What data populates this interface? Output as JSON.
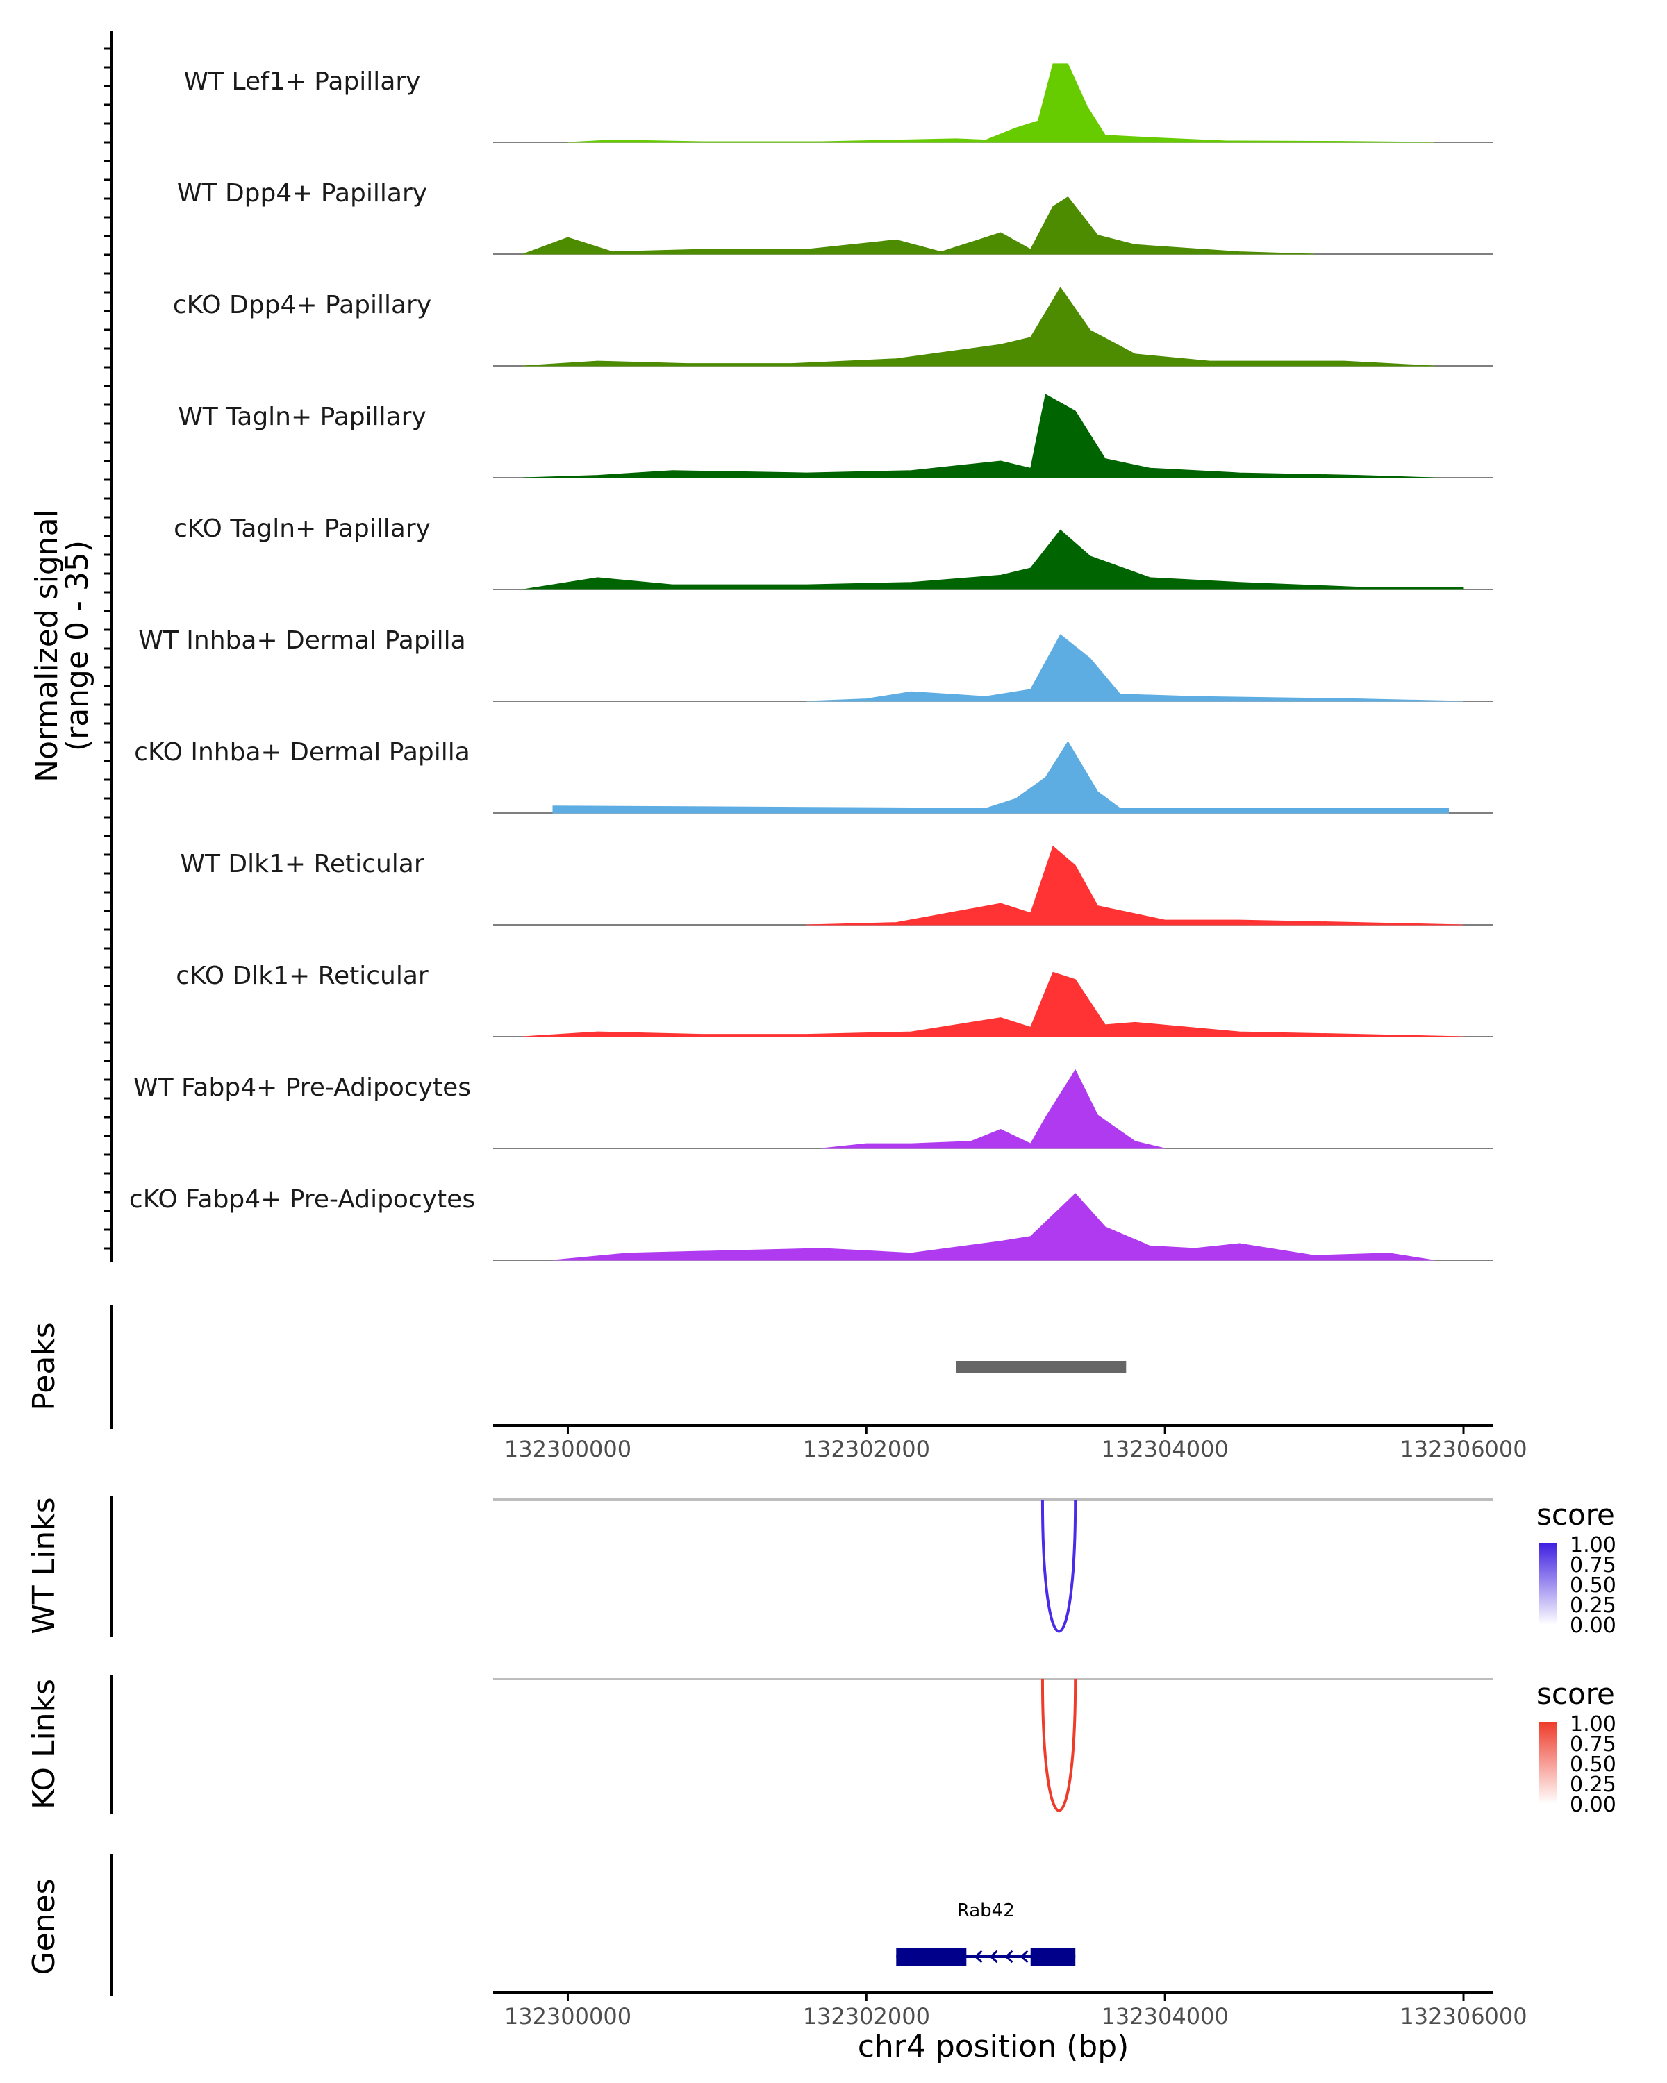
{
  "chart_data": {
    "type": "area",
    "title": "",
    "xlabel": "chr4 position (bp)",
    "ylabel": "Normalized signal",
    "ylabel_sub": "(range 0 - 35)",
    "xlim": [
      132299500,
      132306200
    ],
    "ylim": [
      0,
      35
    ],
    "x_ticks": [
      132300000,
      132302000,
      132304000,
      132306000
    ],
    "x_tick_labels": [
      "132300000",
      "132302000",
      "132304000",
      "132306000"
    ],
    "series": [
      {
        "name": "WT Lef1+ Papillary",
        "color": "#66CC00",
        "values": [
          [
            132300000,
            0
          ],
          [
            132300300,
            1
          ],
          [
            132300900,
            0.3
          ],
          [
            132301700,
            0.3
          ],
          [
            132302600,
            1.5
          ],
          [
            132302800,
            1
          ],
          [
            132303000,
            6
          ],
          [
            132303150,
            9
          ],
          [
            132303250,
            33
          ],
          [
            132303350,
            33
          ],
          [
            132303480,
            15
          ],
          [
            132303600,
            3
          ],
          [
            132303900,
            2
          ],
          [
            132304400,
            0.6
          ],
          [
            132305200,
            0.4
          ],
          [
            132305800,
            0
          ]
        ]
      },
      {
        "name": "WT Dpp4+ Papillary",
        "color": "#4D8C00",
        "values": [
          [
            132299700,
            0
          ],
          [
            132300000,
            7
          ],
          [
            132300300,
            1
          ],
          [
            132300900,
            2
          ],
          [
            132301600,
            2
          ],
          [
            132302200,
            6
          ],
          [
            132302500,
            1
          ],
          [
            132302900,
            9
          ],
          [
            132303100,
            2
          ],
          [
            132303250,
            20
          ],
          [
            132303350,
            24
          ],
          [
            132303550,
            8
          ],
          [
            132303800,
            4
          ],
          [
            132304500,
            1
          ],
          [
            132305000,
            0
          ]
        ]
      },
      {
        "name": "cKO Dpp4+ Papillary",
        "color": "#4D8C00",
        "values": [
          [
            132299700,
            0
          ],
          [
            132300200,
            2
          ],
          [
            132300800,
            1
          ],
          [
            132301500,
            1
          ],
          [
            132302200,
            3
          ],
          [
            132302900,
            9
          ],
          [
            132303100,
            12
          ],
          [
            132303300,
            33
          ],
          [
            132303500,
            15
          ],
          [
            132303800,
            5
          ],
          [
            132304300,
            2
          ],
          [
            132305200,
            2
          ],
          [
            132305800,
            0
          ]
        ]
      },
      {
        "name": "WT Tagln+ Papillary",
        "color": "#006400",
        "values": [
          [
            132299700,
            0
          ],
          [
            132300200,
            1
          ],
          [
            132300700,
            3
          ],
          [
            132301600,
            2
          ],
          [
            132302300,
            3
          ],
          [
            132302900,
            7
          ],
          [
            132303100,
            4
          ],
          [
            132303200,
            35
          ],
          [
            132303400,
            28
          ],
          [
            132303600,
            8
          ],
          [
            132303900,
            4
          ],
          [
            132304500,
            2
          ],
          [
            132305300,
            1
          ],
          [
            132305800,
            0
          ]
        ]
      },
      {
        "name": "cKO Tagln+ Papillary",
        "color": "#006400",
        "values": [
          [
            132299700,
            0
          ],
          [
            132300200,
            5
          ],
          [
            132300700,
            2
          ],
          [
            132301600,
            2
          ],
          [
            132302300,
            3
          ],
          [
            132302900,
            6
          ],
          [
            132303100,
            9
          ],
          [
            132303300,
            25
          ],
          [
            132303500,
            14
          ],
          [
            132303900,
            5
          ],
          [
            132304500,
            3
          ],
          [
            132305300,
            1
          ],
          [
            132306000,
            1
          ]
        ]
      },
      {
        "name": "WT Inhba+ Dermal Papilla",
        "color": "#5DADE2",
        "values": [
          [
            132301600,
            0
          ],
          [
            132302000,
            1
          ],
          [
            132302300,
            4
          ],
          [
            132302800,
            2
          ],
          [
            132303100,
            5
          ],
          [
            132303300,
            28
          ],
          [
            132303500,
            18
          ],
          [
            132303700,
            3
          ],
          [
            132304200,
            2
          ],
          [
            132305300,
            1
          ],
          [
            132306000,
            0
          ]
        ]
      },
      {
        "name": "cKO Inhba+ Dermal Papilla",
        "color": "#5DADE2",
        "values": [
          [
            132299900,
            3
          ],
          [
            132302800,
            2
          ],
          [
            132303000,
            6
          ],
          [
            132303200,
            15
          ],
          [
            132303350,
            30
          ],
          [
            132303550,
            9
          ],
          [
            132303700,
            2
          ],
          [
            132304200,
            2
          ],
          [
            132305100,
            2
          ],
          [
            132305900,
            2
          ]
        ]
      },
      {
        "name": "WT Dlk1+ Reticular",
        "color": "#FF3333",
        "values": [
          [
            132301600,
            0
          ],
          [
            132302200,
            1
          ],
          [
            132302900,
            9
          ],
          [
            132303100,
            5
          ],
          [
            132303250,
            33
          ],
          [
            132303400,
            25
          ],
          [
            132303550,
            8
          ],
          [
            132304000,
            2
          ],
          [
            132304500,
            2
          ],
          [
            132305300,
            1
          ],
          [
            132306000,
            0
          ]
        ]
      },
      {
        "name": "cKO Dlk1+ Reticular",
        "color": "#FF3333",
        "values": [
          [
            132299700,
            0
          ],
          [
            132300200,
            2
          ],
          [
            132300900,
            1
          ],
          [
            132301600,
            1
          ],
          [
            132302300,
            2
          ],
          [
            132302900,
            8
          ],
          [
            132303100,
            4
          ],
          [
            132303250,
            27
          ],
          [
            132303400,
            24
          ],
          [
            132303600,
            5
          ],
          [
            132303800,
            6
          ],
          [
            132304500,
            2
          ],
          [
            132305300,
            1
          ],
          [
            132306000,
            0
          ]
        ]
      },
      {
        "name": "WT Fabp4+ Pre-Adipocytes",
        "color": "#B03AF0",
        "values": [
          [
            132301700,
            0
          ],
          [
            132302000,
            2
          ],
          [
            132302300,
            2
          ],
          [
            132302700,
            3
          ],
          [
            132302900,
            8
          ],
          [
            132303100,
            2
          ],
          [
            132303200,
            13
          ],
          [
            132303400,
            33
          ],
          [
            132303550,
            14
          ],
          [
            132303800,
            3
          ],
          [
            132304000,
            0
          ]
        ]
      },
      {
        "name": "cKO Fabp4+ Pre-Adipocytes",
        "color": "#B03AF0",
        "values": [
          [
            132299900,
            0
          ],
          [
            132300400,
            3
          ],
          [
            132301700,
            5
          ],
          [
            132302300,
            3
          ],
          [
            132302900,
            8
          ],
          [
            132303100,
            10
          ],
          [
            132303400,
            28
          ],
          [
            132303600,
            14
          ],
          [
            132303900,
            6
          ],
          [
            132304200,
            5
          ],
          [
            132304500,
            7
          ],
          [
            132305000,
            2
          ],
          [
            132305500,
            3
          ],
          [
            132305800,
            0
          ]
        ]
      }
    ],
    "peaks": {
      "label": "Peaks",
      "regions": [
        [
          132302600,
          132303740
        ]
      ],
      "color": "#666666"
    },
    "links": [
      {
        "label": "WT Links",
        "start": 132303180,
        "end": 132303400,
        "score": 0.8,
        "color": "#4B2BE8",
        "legend_title": "score",
        "legend_ticks": [
          "1.00",
          "0.75",
          "0.50",
          "0.25",
          "0.00"
        ],
        "legend_color": "#3F1FE0"
      },
      {
        "label": "KO Links",
        "start": 132303180,
        "end": 132303400,
        "score": 0.85,
        "color": "#EE3B2A",
        "legend_title": "score",
        "legend_ticks": [
          "1.00",
          "0.75",
          "0.50",
          "0.25",
          "0.00"
        ],
        "legend_color": "#EE3B2A"
      }
    ],
    "genes": {
      "label": "Genes",
      "items": [
        {
          "name": "Rab42",
          "start": 132302200,
          "end": 132303400,
          "strand": "-",
          "exons": [
            [
              132302200,
              132302670
            ],
            [
              132303100,
              132303400
            ]
          ],
          "color": "#00008B"
        }
      ]
    }
  }
}
